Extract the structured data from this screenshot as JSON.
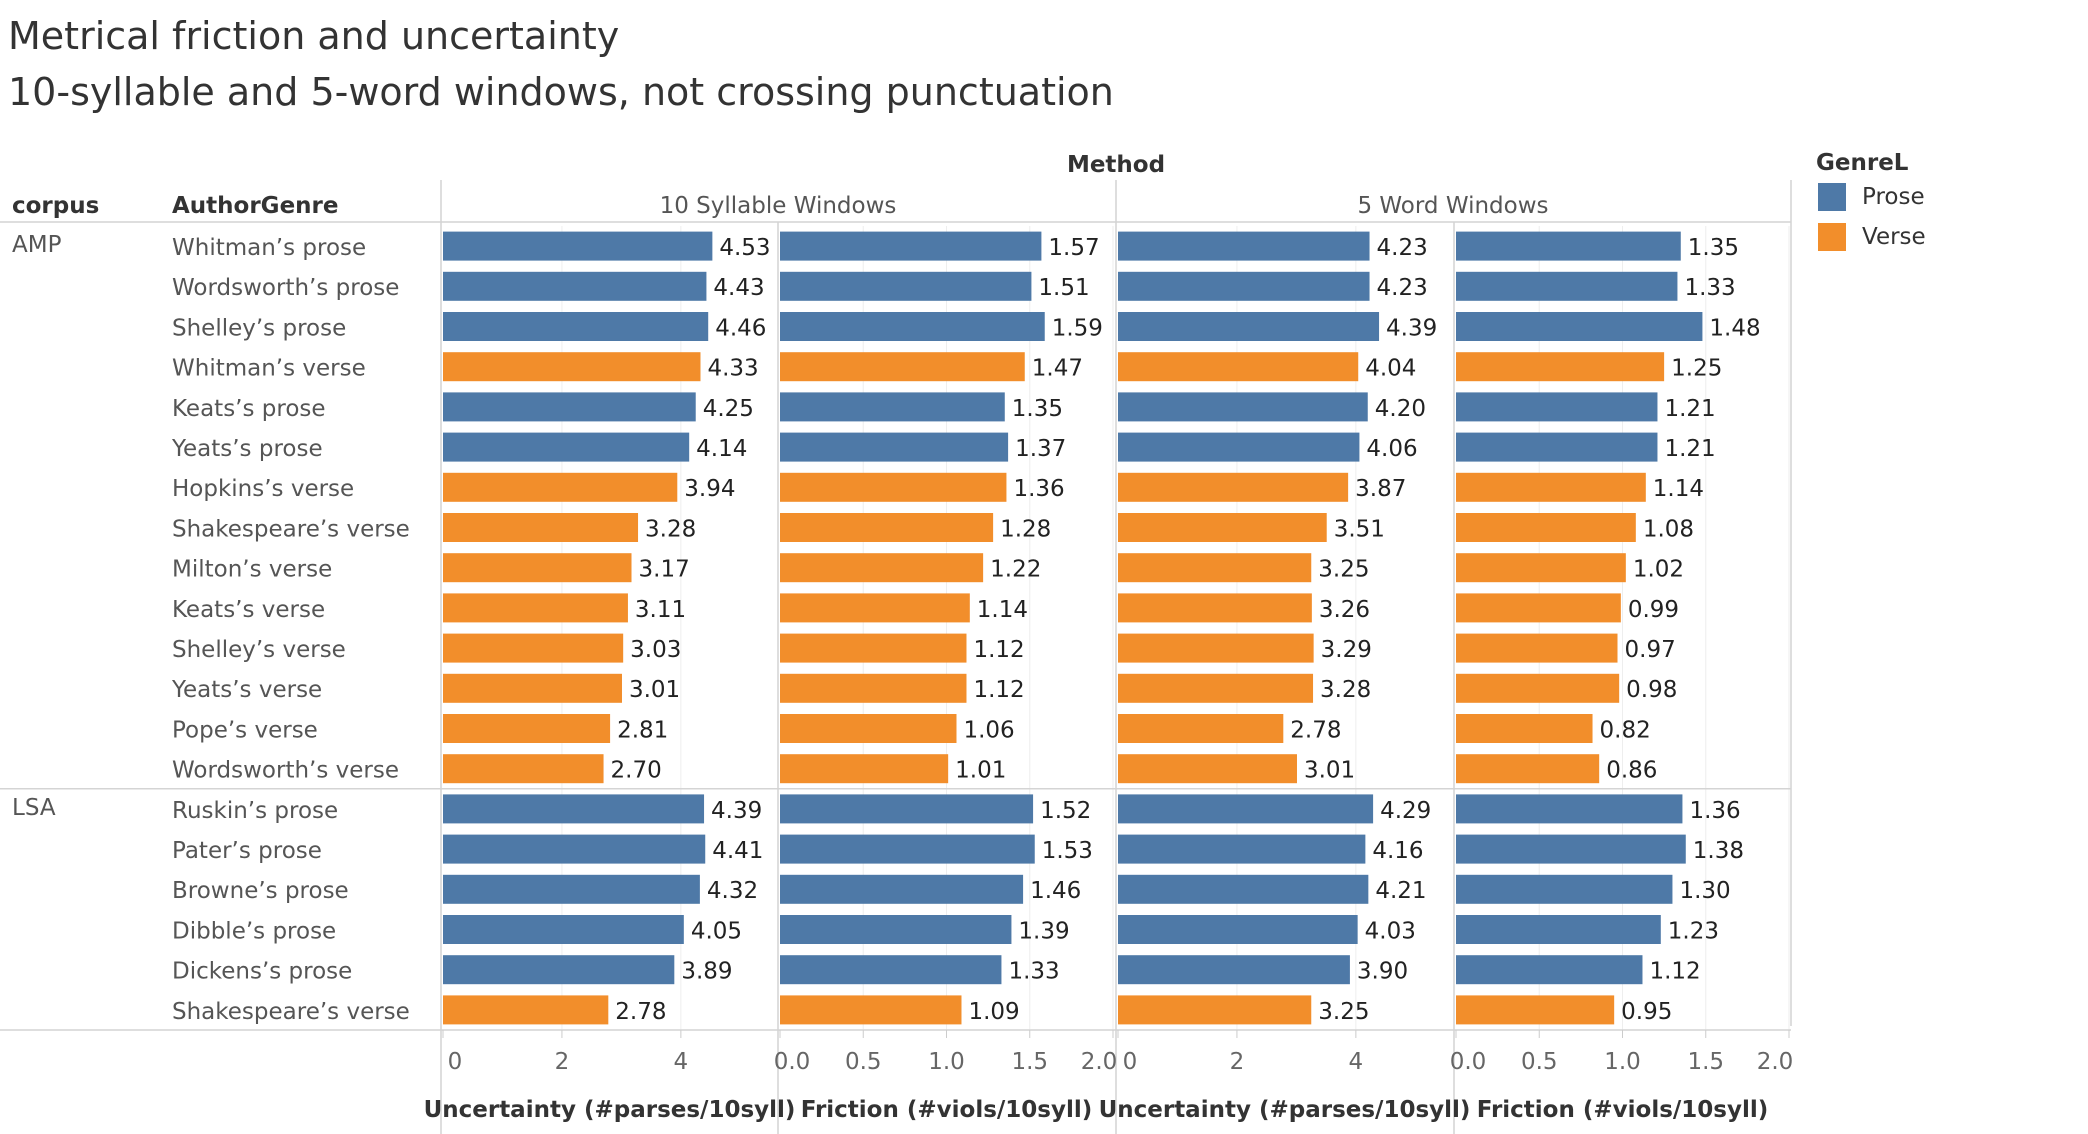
{
  "title": "Metrical friction and uncertainty",
  "subtitle": "10-syllable and 5-word windows, not crossing punctuation",
  "colors": {
    "Prose": "#4e79a7",
    "Verse": "#f28e2b"
  },
  "legend": {
    "title": "GenreL",
    "items": [
      "Prose",
      "Verse"
    ],
    "position": "right"
  },
  "chart_data": {
    "type": "bar",
    "orientation": "horizontal",
    "column_group_label": "Method",
    "row_header_labels": [
      "corpus",
      "AuthorGenre"
    ],
    "methods": [
      "10 Syllable Windows",
      "5 Word Windows"
    ],
    "measures": [
      {
        "label": "Uncertainty (#parses/10syll)",
        "ticks": [
          "0",
          "2",
          "4"
        ],
        "xlim": [
          0,
          5.6
        ]
      },
      {
        "label": "Friction (#viols/10syll)",
        "ticks": [
          "0.0",
          "0.5",
          "1.0",
          "1.5",
          "2.0"
        ],
        "xlim": [
          0,
          2.0
        ]
      }
    ],
    "groups": [
      {
        "corpus": "AMP",
        "rows": [
          {
            "label": "Whitman’s prose",
            "genre": "Prose",
            "values": [
              "4.53",
              "1.57",
              "4.23",
              "1.35"
            ]
          },
          {
            "label": "Wordsworth’s prose",
            "genre": "Prose",
            "values": [
              "4.43",
              "1.51",
              "4.23",
              "1.33"
            ]
          },
          {
            "label": "Shelley’s prose",
            "genre": "Prose",
            "values": [
              "4.46",
              "1.59",
              "4.39",
              "1.48"
            ]
          },
          {
            "label": "Whitman’s verse",
            "genre": "Verse",
            "values": [
              "4.33",
              "1.47",
              "4.04",
              "1.25"
            ]
          },
          {
            "label": "Keats’s prose",
            "genre": "Prose",
            "values": [
              "4.25",
              "1.35",
              "4.20",
              "1.21"
            ]
          },
          {
            "label": "Yeats’s prose",
            "genre": "Prose",
            "values": [
              "4.14",
              "1.37",
              "4.06",
              "1.21"
            ]
          },
          {
            "label": "Hopkins’s verse",
            "genre": "Verse",
            "values": [
              "3.94",
              "1.36",
              "3.87",
              "1.14"
            ]
          },
          {
            "label": "Shakespeare’s verse",
            "genre": "Verse",
            "values": [
              "3.28",
              "1.28",
              "3.51",
              "1.08"
            ]
          },
          {
            "label": "Milton’s verse",
            "genre": "Verse",
            "values": [
              "3.17",
              "1.22",
              "3.25",
              "1.02"
            ]
          },
          {
            "label": "Keats’s verse",
            "genre": "Verse",
            "values": [
              "3.11",
              "1.14",
              "3.26",
              "0.99"
            ]
          },
          {
            "label": "Shelley’s verse",
            "genre": "Verse",
            "values": [
              "3.03",
              "1.12",
              "3.29",
              "0.97"
            ]
          },
          {
            "label": "Yeats’s verse",
            "genre": "Verse",
            "values": [
              "3.01",
              "1.12",
              "3.28",
              "0.98"
            ]
          },
          {
            "label": "Pope’s verse",
            "genre": "Verse",
            "values": [
              "2.81",
              "1.06",
              "2.78",
              "0.82"
            ]
          },
          {
            "label": "Wordsworth’s verse",
            "genre": "Verse",
            "values": [
              "2.70",
              "1.01",
              "3.01",
              "0.86"
            ]
          }
        ]
      },
      {
        "corpus": "LSA",
        "rows": [
          {
            "label": "Ruskin’s prose",
            "genre": "Prose",
            "values": [
              "4.39",
              "1.52",
              "4.29",
              "1.36"
            ]
          },
          {
            "label": "Pater’s prose",
            "genre": "Prose",
            "values": [
              "4.41",
              "1.53",
              "4.16",
              "1.38"
            ]
          },
          {
            "label": "Browne’s prose",
            "genre": "Prose",
            "values": [
              "4.32",
              "1.46",
              "4.21",
              "1.30"
            ]
          },
          {
            "label": "Dibble’s prose",
            "genre": "Prose",
            "values": [
              "4.05",
              "1.39",
              "4.03",
              "1.23"
            ]
          },
          {
            "label": "Dickens’s prose",
            "genre": "Prose",
            "values": [
              "3.89",
              "1.33",
              "3.90",
              "1.12"
            ]
          },
          {
            "label": "Shakespeare’s verse",
            "genre": "Verse",
            "values": [
              "2.78",
              "1.09",
              "3.25",
              "0.95"
            ]
          }
        ]
      }
    ]
  }
}
